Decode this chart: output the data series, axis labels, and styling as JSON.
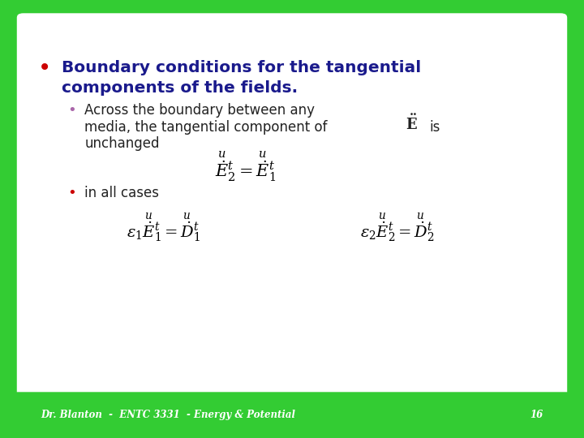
{
  "bg_green": "#33cc33",
  "bg_green_dark": "#28b828",
  "white": "#FFFFFF",
  "bullet_red": "#cc0000",
  "bullet_purple": "#aa66aa",
  "text_blue": "#1a1a8c",
  "text_dark": "#222222",
  "footer_text_color": "#FFFFFF",
  "footer_text": "Dr. Blanton  -  ENTC 3331  - Energy & Potential",
  "footer_number": "16",
  "title_line1": "Boundary conditions for the tangential",
  "title_line2": "components of the fields.",
  "sub1_line1": "Across the boundary between any",
  "sub1_line2": "media, the tangential component of",
  "sub1_line3_pre": "unchanged",
  "sub2_text": "in all cases"
}
